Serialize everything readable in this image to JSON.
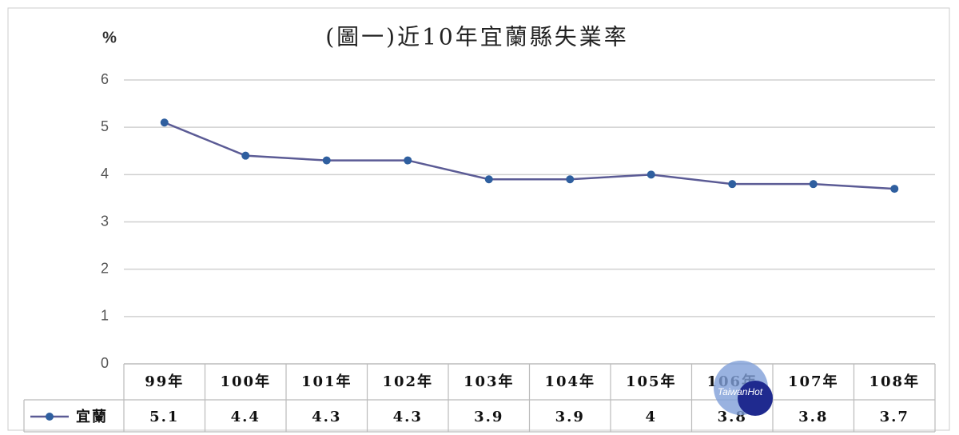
{
  "chart_data": {
    "type": "line",
    "title": "(圖一)近10年宜蘭縣失業率",
    "y_label": "%",
    "categories": [
      "99年",
      "100年",
      "101年",
      "102年",
      "103年",
      "104年",
      "105年",
      "106年",
      "107年",
      "108年"
    ],
    "series": [
      {
        "name": "宜蘭",
        "color": "#5b5b95",
        "marker_color": "#2f5f9f",
        "values": [
          5.1,
          4.4,
          4.3,
          4.3,
          3.9,
          3.9,
          4,
          3.8,
          3.8,
          3.7
        ]
      }
    ],
    "ylim": [
      0,
      6
    ],
    "yticks": [
      0,
      1,
      2,
      3,
      4,
      5,
      6
    ],
    "grid": true,
    "data_table": true
  },
  "watermark": "TaiwanHot"
}
